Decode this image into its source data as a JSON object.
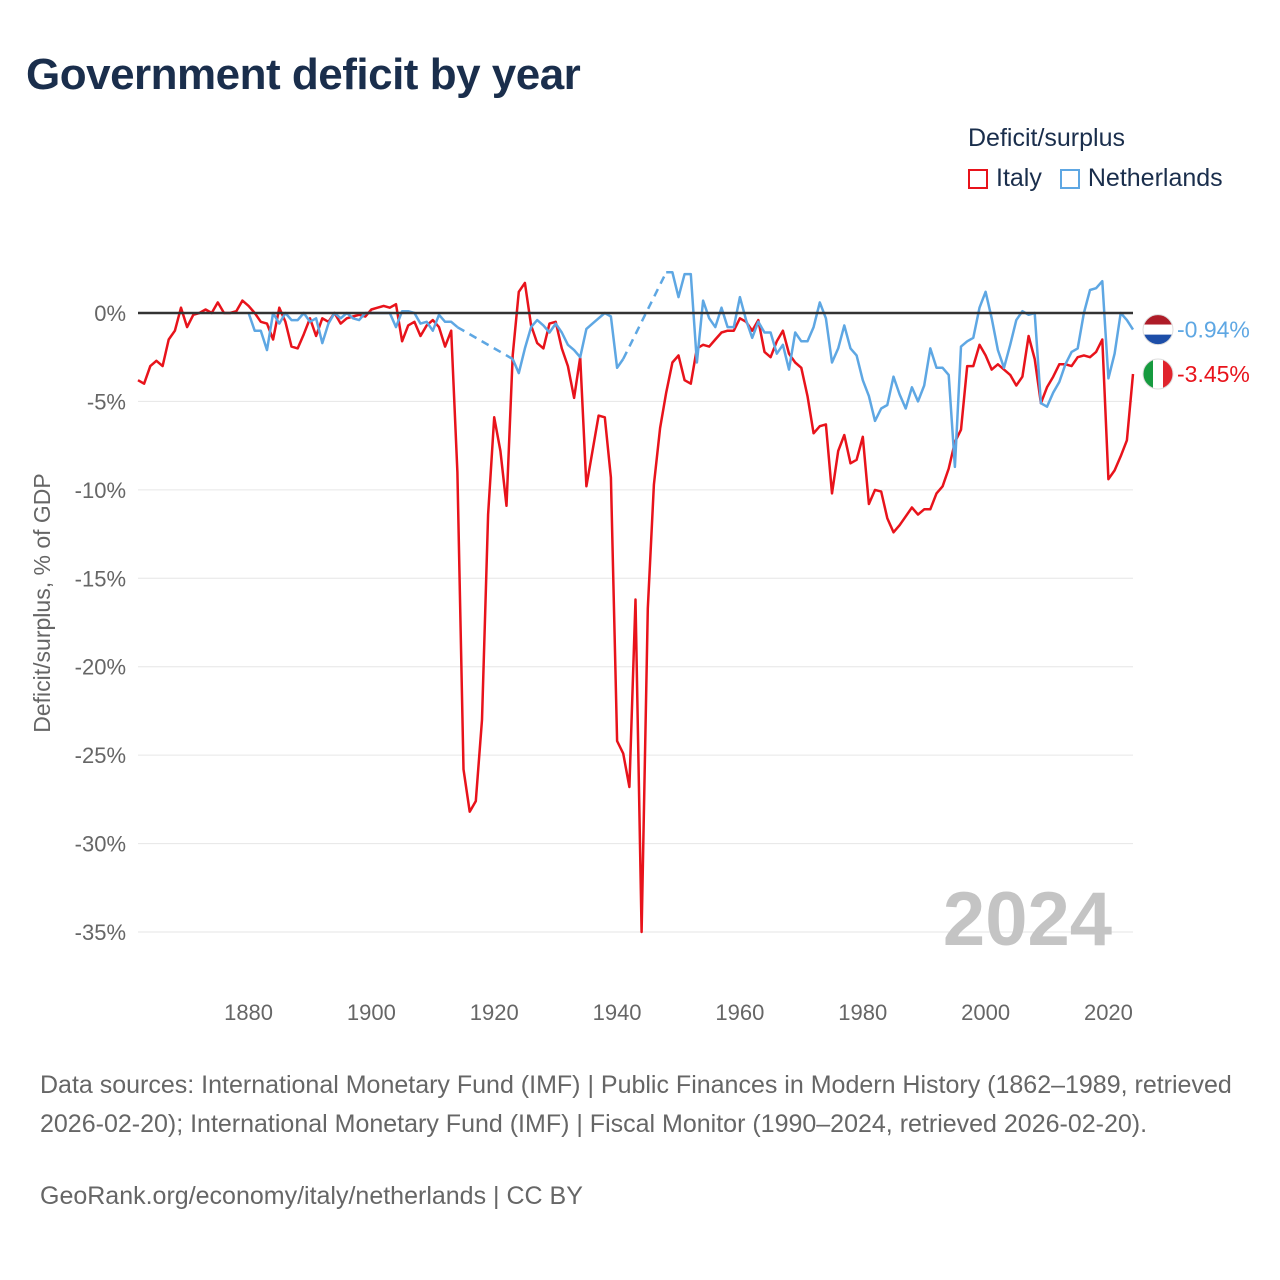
{
  "title": "Government deficit by year",
  "legend": {
    "title": "Deficit/surplus",
    "items": [
      {
        "label": "Italy",
        "color": "#e8131b"
      },
      {
        "label": "Netherlands",
        "color": "#5ea7e3"
      }
    ]
  },
  "chart_data": {
    "type": "line",
    "title": "Government deficit by year",
    "ylabel": "Deficit/surplus, % of GDP",
    "xlabel": "",
    "xlim": [
      1862,
      2024
    ],
    "ylim": [
      -35,
      0
    ],
    "yticks": [
      0,
      -5,
      -10,
      -15,
      -20,
      -25,
      -30,
      -35
    ],
    "ytick_labels": [
      "0%",
      "-5%",
      "-10%",
      "-15%",
      "-20%",
      "-25%",
      "-30%",
      "-35%"
    ],
    "xticks": [
      1880,
      1900,
      1920,
      1940,
      1960,
      1980,
      2000,
      2020
    ],
    "xtick_labels": [
      "1880",
      "1900",
      "1920",
      "1940",
      "1960",
      "1980",
      "2000",
      "2020"
    ],
    "year_watermark": "2024",
    "series": [
      {
        "name": "Italy",
        "color": "#e8131b",
        "end_label": "-3.45%",
        "points": [
          [
            1862,
            -3.8
          ],
          [
            1863,
            -4.0
          ],
          [
            1864,
            -3.0
          ],
          [
            1865,
            -2.7
          ],
          [
            1866,
            -3.0
          ],
          [
            1867,
            -1.5
          ],
          [
            1868,
            -1.0
          ],
          [
            1869,
            0.3
          ],
          [
            1870,
            -0.8
          ],
          [
            1871,
            -0.1
          ],
          [
            1872,
            0.0
          ],
          [
            1873,
            0.2
          ],
          [
            1874,
            0.0
          ],
          [
            1875,
            0.6
          ],
          [
            1876,
            0.0
          ],
          [
            1877,
            0.0
          ],
          [
            1878,
            0.1
          ],
          [
            1879,
            0.7
          ],
          [
            1880,
            0.4
          ],
          [
            1881,
            0.0
          ],
          [
            1882,
            -0.5
          ],
          [
            1883,
            -0.6
          ],
          [
            1884,
            -1.5
          ],
          [
            1885,
            0.3
          ],
          [
            1886,
            -0.5
          ],
          [
            1887,
            -1.9
          ],
          [
            1888,
            -2.0
          ],
          [
            1889,
            -1.2
          ],
          [
            1890,
            -0.3
          ],
          [
            1891,
            -1.3
          ],
          [
            1892,
            -0.3
          ],
          [
            1893,
            -0.5
          ],
          [
            1894,
            0.0
          ],
          [
            1895,
            -0.6
          ],
          [
            1896,
            -0.3
          ],
          [
            1897,
            -0.2
          ],
          [
            1898,
            -0.1
          ],
          [
            1899,
            -0.2
          ],
          [
            1900,
            0.2
          ],
          [
            1901,
            0.3
          ],
          [
            1902,
            0.4
          ],
          [
            1903,
            0.3
          ],
          [
            1904,
            0.5
          ],
          [
            1905,
            -1.6
          ],
          [
            1906,
            -0.7
          ],
          [
            1907,
            -0.5
          ],
          [
            1908,
            -1.3
          ],
          [
            1909,
            -0.7
          ],
          [
            1910,
            -0.4
          ],
          [
            1911,
            -0.8
          ],
          [
            1912,
            -1.9
          ],
          [
            1913,
            -1.0
          ],
          [
            1914,
            -9.0
          ],
          [
            1915,
            -25.8
          ],
          [
            1916,
            -28.2
          ],
          [
            1917,
            -27.6
          ],
          [
            1918,
            -23.0
          ],
          [
            1919,
            -11.4
          ],
          [
            1920,
            -5.9
          ],
          [
            1921,
            -7.8
          ],
          [
            1922,
            -10.9
          ],
          [
            1923,
            -2.4
          ],
          [
            1924,
            1.2
          ],
          [
            1925,
            1.7
          ],
          [
            1926,
            -0.7
          ],
          [
            1927,
            -1.7
          ],
          [
            1928,
            -2.0
          ],
          [
            1929,
            -0.6
          ],
          [
            1930,
            -0.5
          ],
          [
            1931,
            -2.0
          ],
          [
            1932,
            -3.0
          ],
          [
            1933,
            -4.8
          ],
          [
            1934,
            -2.5
          ],
          [
            1935,
            -9.8
          ],
          [
            1936,
            -7.8
          ],
          [
            1937,
            -5.8
          ],
          [
            1938,
            -5.9
          ],
          [
            1939,
            -9.3
          ],
          [
            1940,
            -24.2
          ],
          [
            1941,
            -24.9
          ],
          [
            1942,
            -26.8
          ],
          [
            1943,
            -16.2
          ],
          [
            1944,
            -35.0
          ],
          [
            1945,
            -16.7
          ],
          [
            1946,
            -9.7
          ],
          [
            1947,
            -6.5
          ],
          [
            1948,
            -4.5
          ],
          [
            1949,
            -2.8
          ],
          [
            1950,
            -2.4
          ],
          [
            1951,
            -3.8
          ],
          [
            1952,
            -4.0
          ],
          [
            1953,
            -2.0
          ],
          [
            1954,
            -1.8
          ],
          [
            1955,
            -1.9
          ],
          [
            1956,
            -1.5
          ],
          [
            1957,
            -1.1
          ],
          [
            1958,
            -1.0
          ],
          [
            1959,
            -1.0
          ],
          [
            1960,
            -0.3
          ],
          [
            1961,
            -0.5
          ],
          [
            1962,
            -1.0
          ],
          [
            1963,
            -0.4
          ],
          [
            1964,
            -2.2
          ],
          [
            1965,
            -2.5
          ],
          [
            1966,
            -1.6
          ],
          [
            1967,
            -1.0
          ],
          [
            1968,
            -2.3
          ],
          [
            1969,
            -2.8
          ],
          [
            1970,
            -3.1
          ],
          [
            1971,
            -4.7
          ],
          [
            1972,
            -6.8
          ],
          [
            1973,
            -6.4
          ],
          [
            1974,
            -6.3
          ],
          [
            1975,
            -10.2
          ],
          [
            1976,
            -7.8
          ],
          [
            1977,
            -6.9
          ],
          [
            1978,
            -8.5
          ],
          [
            1979,
            -8.3
          ],
          [
            1980,
            -7.0
          ],
          [
            1981,
            -10.8
          ],
          [
            1982,
            -10.0
          ],
          [
            1983,
            -10.1
          ],
          [
            1984,
            -11.6
          ],
          [
            1985,
            -12.4
          ],
          [
            1986,
            -12.0
          ],
          [
            1987,
            -11.5
          ],
          [
            1988,
            -11.0
          ],
          [
            1989,
            -11.4
          ],
          [
            1990,
            -11.1
          ],
          [
            1991,
            -11.1
          ],
          [
            1992,
            -10.2
          ],
          [
            1993,
            -9.8
          ],
          [
            1994,
            -8.8
          ],
          [
            1995,
            -7.3
          ],
          [
            1996,
            -6.6
          ],
          [
            1997,
            -3.0
          ],
          [
            1998,
            -3.0
          ],
          [
            1999,
            -1.8
          ],
          [
            2000,
            -2.4
          ],
          [
            2001,
            -3.2
          ],
          [
            2002,
            -2.9
          ],
          [
            2003,
            -3.2
          ],
          [
            2004,
            -3.5
          ],
          [
            2005,
            -4.1
          ],
          [
            2006,
            -3.6
          ],
          [
            2007,
            -1.3
          ],
          [
            2008,
            -2.6
          ],
          [
            2009,
            -5.1
          ],
          [
            2010,
            -4.2
          ],
          [
            2011,
            -3.6
          ],
          [
            2012,
            -2.9
          ],
          [
            2013,
            -2.9
          ],
          [
            2014,
            -3.0
          ],
          [
            2015,
            -2.5
          ],
          [
            2016,
            -2.4
          ],
          [
            2017,
            -2.5
          ],
          [
            2018,
            -2.2
          ],
          [
            2019,
            -1.5
          ],
          [
            2020,
            -9.4
          ],
          [
            2021,
            -8.9
          ],
          [
            2022,
            -8.1
          ],
          [
            2023,
            -7.2
          ],
          [
            2024,
            -3.45
          ]
        ]
      },
      {
        "name": "Netherlands",
        "color": "#5ea7e3",
        "end_label": "-0.94%",
        "points": [
          [
            1880,
            0.0
          ],
          [
            1881,
            -1.0
          ],
          [
            1882,
            -1.0
          ],
          [
            1883,
            -2.1
          ],
          [
            1884,
            0.0
          ],
          [
            1885,
            -0.6
          ],
          [
            1886,
            0.0
          ],
          [
            1887,
            -0.4
          ],
          [
            1888,
            -0.4
          ],
          [
            1889,
            0.0
          ],
          [
            1890,
            -0.5
          ],
          [
            1891,
            -0.3
          ],
          [
            1892,
            -1.7
          ],
          [
            1893,
            -0.6
          ],
          [
            1894,
            0.0
          ],
          [
            1895,
            -0.3
          ],
          [
            1896,
            0.0
          ],
          [
            1897,
            -0.3
          ],
          [
            1898,
            -0.4
          ],
          [
            1899,
            0.0
          ],
          [
            1900,
            0.0
          ],
          [
            1901,
            0.0
          ],
          [
            1902,
            0.0
          ],
          [
            1903,
            0.0
          ],
          [
            1904,
            -0.8
          ],
          [
            1905,
            0.1
          ],
          [
            1906,
            0.1
          ],
          [
            1907,
            0.0
          ],
          [
            1908,
            -0.6
          ],
          [
            1909,
            -0.5
          ],
          [
            1910,
            -1.0
          ],
          [
            1911,
            -0.1
          ],
          [
            1912,
            -0.5
          ],
          [
            1913,
            -0.5
          ],
          [
            1914,
            -0.8
          ],
          [
            1923,
            -2.6
          ],
          [
            1924,
            -3.4
          ],
          [
            1925,
            -2.0
          ],
          [
            1926,
            -0.8
          ],
          [
            1927,
            -0.4
          ],
          [
            1928,
            -0.7
          ],
          [
            1929,
            -1.1
          ],
          [
            1930,
            -0.6
          ],
          [
            1931,
            -1.1
          ],
          [
            1932,
            -1.8
          ],
          [
            1933,
            -2.1
          ],
          [
            1934,
            -2.5
          ],
          [
            1935,
            -0.9
          ],
          [
            1936,
            -0.6
          ],
          [
            1937,
            -0.3
          ],
          [
            1938,
            0.0
          ],
          [
            1939,
            -0.2
          ],
          [
            1940,
            -3.1
          ],
          [
            1941,
            -2.6
          ],
          [
            1948,
            2.3
          ],
          [
            1949,
            2.3
          ],
          [
            1950,
            0.9
          ],
          [
            1951,
            2.2
          ],
          [
            1952,
            2.2
          ],
          [
            1953,
            -2.8
          ],
          [
            1954,
            0.7
          ],
          [
            1955,
            -0.3
          ],
          [
            1956,
            -0.8
          ],
          [
            1957,
            0.3
          ],
          [
            1958,
            -0.8
          ],
          [
            1959,
            -0.8
          ],
          [
            1960,
            0.9
          ],
          [
            1961,
            -0.4
          ],
          [
            1962,
            -1.4
          ],
          [
            1963,
            -0.5
          ],
          [
            1964,
            -1.1
          ],
          [
            1965,
            -1.1
          ],
          [
            1966,
            -2.3
          ],
          [
            1967,
            -1.8
          ],
          [
            1968,
            -3.2
          ],
          [
            1969,
            -1.1
          ],
          [
            1970,
            -1.6
          ],
          [
            1971,
            -1.6
          ],
          [
            1972,
            -0.8
          ],
          [
            1973,
            0.6
          ],
          [
            1974,
            -0.3
          ],
          [
            1975,
            -2.8
          ],
          [
            1976,
            -2.0
          ],
          [
            1977,
            -0.7
          ],
          [
            1978,
            -2.0
          ],
          [
            1979,
            -2.4
          ],
          [
            1980,
            -3.8
          ],
          [
            1981,
            -4.7
          ],
          [
            1982,
            -6.1
          ],
          [
            1983,
            -5.4
          ],
          [
            1984,
            -5.2
          ],
          [
            1985,
            -3.6
          ],
          [
            1986,
            -4.6
          ],
          [
            1987,
            -5.4
          ],
          [
            1988,
            -4.2
          ],
          [
            1989,
            -5.0
          ],
          [
            1990,
            -4.1
          ],
          [
            1991,
            -2.0
          ],
          [
            1992,
            -3.1
          ],
          [
            1993,
            -3.1
          ],
          [
            1994,
            -3.5
          ],
          [
            1995,
            -8.7
          ],
          [
            1996,
            -1.9
          ],
          [
            1997,
            -1.6
          ],
          [
            1998,
            -1.4
          ],
          [
            1999,
            0.3
          ],
          [
            2000,
            1.2
          ],
          [
            2001,
            -0.3
          ],
          [
            2002,
            -2.1
          ],
          [
            2003,
            -3.1
          ],
          [
            2004,
            -1.8
          ],
          [
            2005,
            -0.4
          ],
          [
            2006,
            0.1
          ],
          [
            2007,
            -0.1
          ],
          [
            2008,
            0.0
          ],
          [
            2009,
            -5.1
          ],
          [
            2010,
            -5.3
          ],
          [
            2011,
            -4.5
          ],
          [
            2012,
            -3.9
          ],
          [
            2013,
            -2.9
          ],
          [
            2014,
            -2.2
          ],
          [
            2015,
            -2.0
          ],
          [
            2016,
            0.0
          ],
          [
            2017,
            1.3
          ],
          [
            2018,
            1.4
          ],
          [
            2019,
            1.8
          ],
          [
            2020,
            -3.7
          ],
          [
            2021,
            -2.3
          ],
          [
            2022,
            0.0
          ],
          [
            2023,
            -0.4
          ],
          [
            2024,
            -0.94
          ]
        ]
      }
    ]
  },
  "source_text": "Data sources: International Monetary Fund (IMF) | Public Finances in Modern History (1862–1989, retrieved 2026-02-20); International Monetary Fund (IMF) | Fiscal Monitor (1990–2024, retrieved 2026-02-20).",
  "credit_text": "GeoRank.org/economy/italy/netherlands | CC BY"
}
